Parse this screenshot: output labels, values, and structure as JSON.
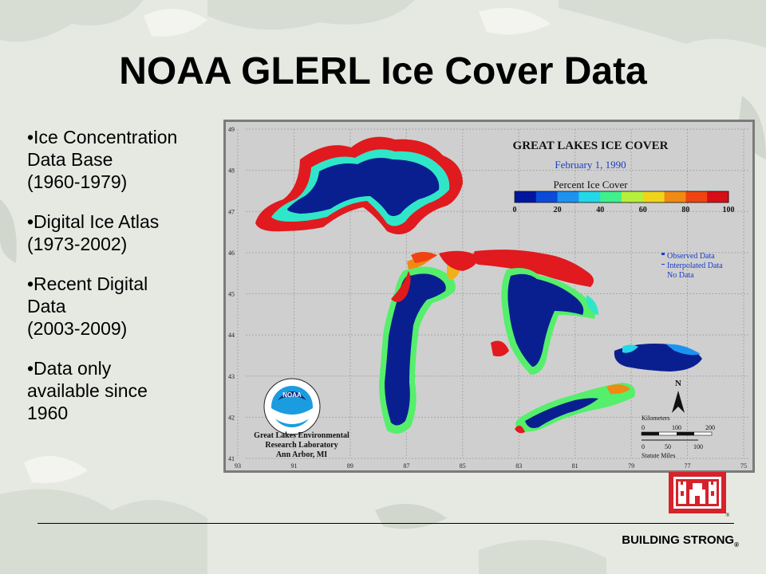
{
  "slide": {
    "title": "NOAA GLERL Ice Cover Data",
    "bullets": [
      {
        "lines": [
          "•Ice Concentration",
          "Data Base",
          "(1960-1979)"
        ]
      },
      {
        "lines": [
          "•Digital Ice Atlas",
          "(1973-2002)"
        ]
      },
      {
        "lines": [
          "•Recent Digital",
          "Data",
          "(2003-2009)"
        ]
      },
      {
        "lines": [
          "•Data only",
          "available since",
          "1960"
        ]
      }
    ],
    "footer": {
      "text": "BUILDING STRONG",
      "mark": "®"
    }
  },
  "map": {
    "title": "GREAT LAKES ICE COVER",
    "date": "February 1, 1990",
    "scale_title": "Percent Ice Cover",
    "scale_ticks": [
      "0",
      "20",
      "40",
      "60",
      "80",
      "100"
    ],
    "scale_colors": [
      "#00169e",
      "#0a4cd9",
      "#1c93f0",
      "#22d7e8",
      "#3ff08d",
      "#b6f03a",
      "#f0d41a",
      "#f08a12",
      "#ef4412",
      "#d80d16"
    ],
    "legend": [
      "Observed Data",
      "Interpolated Data",
      "No Data"
    ],
    "lat_labels": [
      "49",
      "48",
      "47",
      "46",
      "45",
      "44",
      "43",
      "42",
      "41"
    ],
    "lon_labels": [
      "93",
      "91",
      "89",
      "87",
      "85",
      "83",
      "81",
      "79",
      "77",
      "75"
    ],
    "lab_lines": [
      "Great Lakes Environmental",
      "Research Laboratory",
      "Ann Arbor, MI"
    ],
    "logo_text": "NOAA",
    "north": "N",
    "km_label": "Kilometers",
    "km_ticks": [
      "0",
      "100",
      "200"
    ],
    "mi_ticks": [
      "0",
      "50",
      "100"
    ],
    "mi_label": "Statute Miles",
    "colors": {
      "ice": "#0a1f8f",
      "edge": "#e01a1e",
      "mid": "#2fe7c8",
      "green": "#55ef6c"
    }
  },
  "icons": {
    "logo": "usace-castle-icon"
  }
}
